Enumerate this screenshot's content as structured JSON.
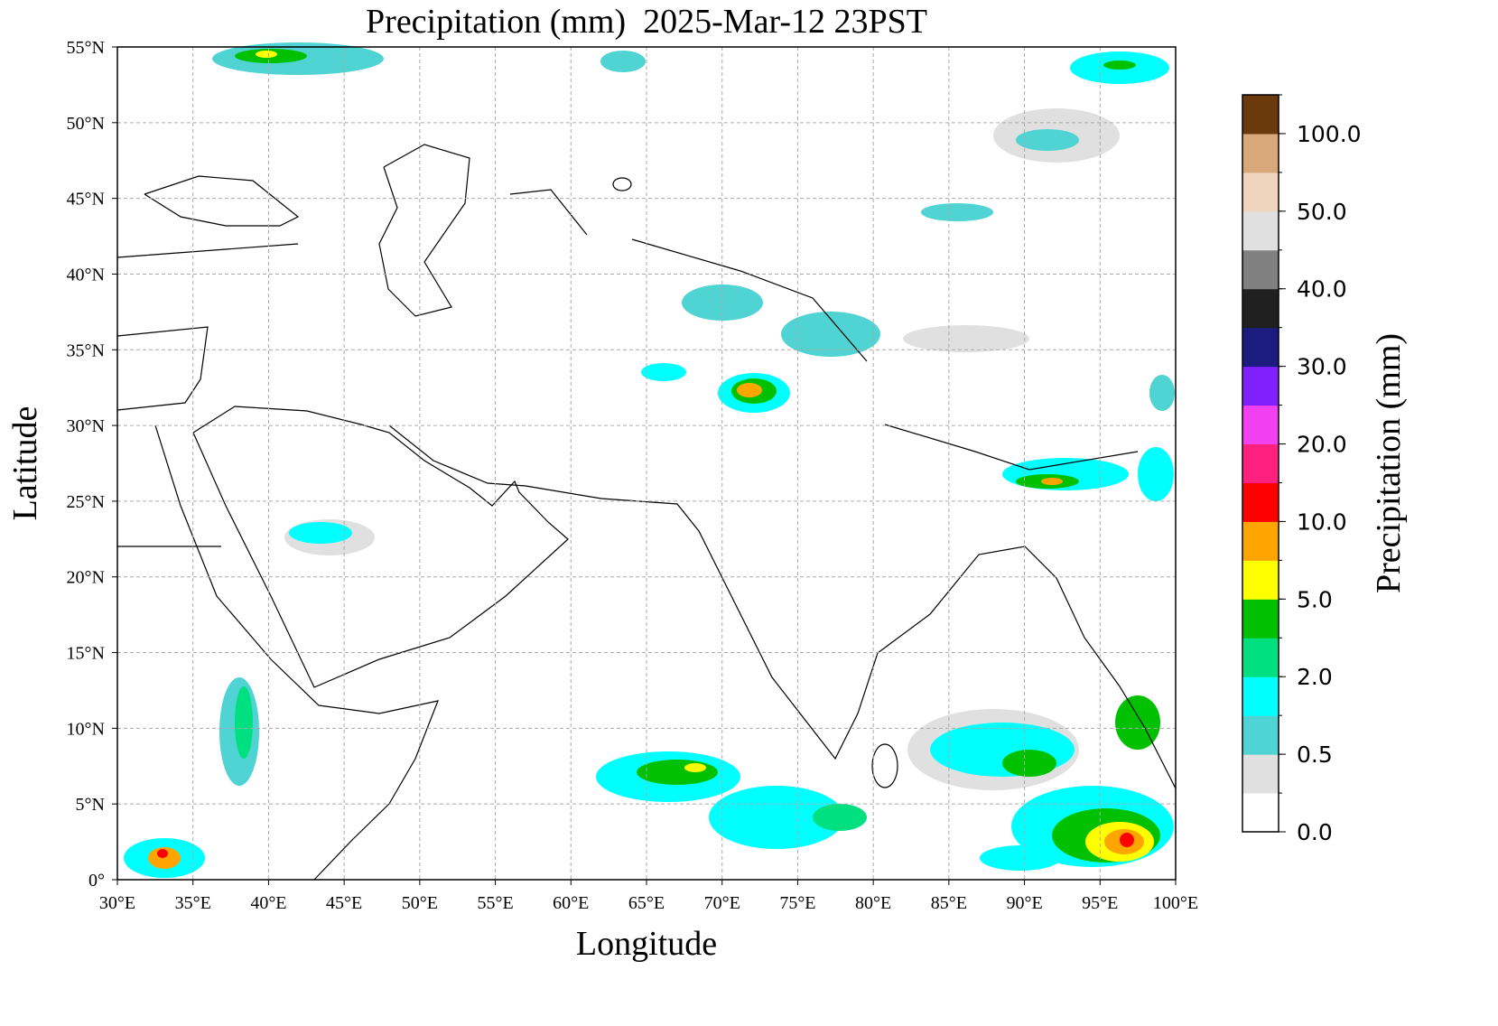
{
  "chart_data": {
    "type": "map",
    "title": "Precipitation (mm)  2025-Mar-12 23PST",
    "xlabel": "Longitude",
    "ylabel": "Latitude",
    "xlim": [
      30,
      100
    ],
    "ylim": [
      0,
      55
    ],
    "xticks": [
      {
        "value": 30,
        "label": "30°E"
      },
      {
        "value": 35,
        "label": "35°E"
      },
      {
        "value": 40,
        "label": "40°E"
      },
      {
        "value": 45,
        "label": "45°E"
      },
      {
        "value": 50,
        "label": "50°E"
      },
      {
        "value": 55,
        "label": "55°E"
      },
      {
        "value": 60,
        "label": "60°E"
      },
      {
        "value": 65,
        "label": "65°E"
      },
      {
        "value": 70,
        "label": "70°E"
      },
      {
        "value": 75,
        "label": "75°E"
      },
      {
        "value": 80,
        "label": "80°E"
      },
      {
        "value": 85,
        "label": "85°E"
      },
      {
        "value": 90,
        "label": "90°E"
      },
      {
        "value": 95,
        "label": "95°E"
      },
      {
        "value": 100,
        "label": "100°E"
      }
    ],
    "yticks": [
      {
        "value": 0,
        "label": "0°"
      },
      {
        "value": 5,
        "label": "5°N"
      },
      {
        "value": 10,
        "label": "10°N"
      },
      {
        "value": 15,
        "label": "15°N"
      },
      {
        "value": 20,
        "label": "20°N"
      },
      {
        "value": 25,
        "label": "25°N"
      },
      {
        "value": 30,
        "label": "30°N"
      },
      {
        "value": 35,
        "label": "35°N"
      },
      {
        "value": 40,
        "label": "40°N"
      },
      {
        "value": 45,
        "label": "45°N"
      },
      {
        "value": 50,
        "label": "50°N"
      },
      {
        "value": 55,
        "label": "55°N"
      }
    ],
    "grid": true,
    "colorbar": {
      "label": "Precipitation (mm)",
      "levels": [
        0,
        0.25,
        0.5,
        1,
        2,
        3,
        5,
        7.5,
        10,
        15,
        20,
        25,
        30,
        35,
        40,
        45,
        50,
        75,
        100,
        150
      ],
      "colors": [
        "#ffffff",
        "#e0e0e0",
        "#4fd3d3",
        "#00ffff",
        "#00e080",
        "#00c000",
        "#ffff00",
        "#ffa500",
        "#ff0000",
        "#ff2080",
        "#f040f0",
        "#8020ff",
        "#1c1c80",
        "#202020",
        "#808080",
        "#e0e0e0",
        "#efd5bd",
        "#d9a87a",
        "#6b3a0c"
      ],
      "ticks": [
        {
          "value": 0,
          "label": "0.0"
        },
        {
          "value": 0.5,
          "label": "0.5"
        },
        {
          "value": 2,
          "label": "2.0"
        },
        {
          "value": 5,
          "label": "5.0"
        },
        {
          "value": 10,
          "label": "10.0"
        },
        {
          "value": 20,
          "label": "20.0"
        },
        {
          "value": 30,
          "label": "30.0"
        },
        {
          "value": 40,
          "label": "40.0"
        },
        {
          "value": 50,
          "label": "50.0"
        },
        {
          "value": 100,
          "label": "100.0"
        }
      ]
    }
  }
}
